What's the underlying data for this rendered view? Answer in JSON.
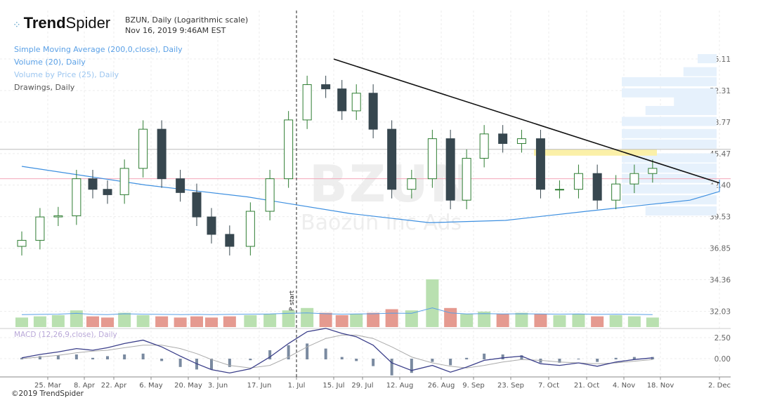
{
  "header": {
    "brand_bold": "Trend",
    "brand_light": "Spider",
    "title": "BZUN, Daily (Logarithmic scale)",
    "timestamp": "Nov 16, 2019 9:46AM EST"
  },
  "legend": [
    {
      "label": "Simple Moving Average (200,0,close), Daily",
      "color": "#5aa0e6"
    },
    {
      "label": "Volume (20), Daily",
      "color": "#5aa0e6"
    },
    {
      "label": "Volume by Price (25), Daily",
      "color": "#9cc6f0"
    },
    {
      "label": "Drawings, Daily",
      "color": "#555555"
    }
  ],
  "watermark": {
    "symbol": "BZUN",
    "name": "Baozun Inc Ads"
  },
  "macd_label": "MACD (12,26,9,close), Daily",
  "copyright": "©2019 TrendSpider",
  "vbp_marker": "VbP start",
  "colors": {
    "up": "#2e7d32",
    "down": "#37474f",
    "sma": "#3d8fe0",
    "trend": "#111111",
    "vol_up": "#b9e0b0",
    "vol_down": "#e59a90"
  },
  "chart_data": {
    "type": "candlestick",
    "scale": "log",
    "title": "BZUN, Daily (Logarithmic scale)",
    "price_ticks": [
      "56.11",
      "52.31",
      "48.77",
      "45.47",
      "42.40",
      "39.53",
      "36.85",
      "34.36",
      "32.03"
    ],
    "macd_ticks": [
      "2.50",
      "0.00"
    ],
    "x_ticks": [
      "25. Mar",
      "8. Apr",
      "22. Apr",
      "6. May",
      "20. May",
      "3. Jun",
      "17. Jun",
      "1. Jul",
      "15. Jul",
      "29. Jul",
      "12. Aug",
      "26. Aug",
      "9. Sep",
      "23. Sep",
      "7. Oct",
      "21. Oct",
      "4. Nov",
      "18. Nov",
      "2. Dec"
    ],
    "weekly_close": [
      37.5,
      39.5,
      39.6,
      43,
      42,
      41.5,
      44,
      48,
      43,
      41.7,
      39.5,
      38,
      37,
      40,
      43,
      49,
      53,
      52.5,
      50,
      52,
      48,
      42,
      43,
      47,
      41,
      45,
      47.5,
      46.5,
      47,
      42,
      42,
      43.5,
      41,
      42.5,
      43.5,
      44
    ],
    "weekly_volume": [
      8,
      9,
      10,
      14,
      9,
      8,
      12,
      10,
      9,
      8,
      9,
      8,
      9,
      10,
      11,
      14,
      16,
      12,
      10,
      11,
      12,
      15,
      14,
      40,
      16,
      11,
      13,
      11,
      12,
      11,
      10,
      11,
      9,
      10,
      9,
      8
    ],
    "sma": [
      [
        -10,
        44.2
      ],
      [
        40,
        42.4
      ],
      [
        80,
        41.3
      ],
      [
        120,
        39.8
      ],
      [
        150,
        39.0
      ],
      [
        180,
        39.2
      ],
      [
        210,
        40.0
      ],
      [
        245,
        41.0
      ],
      [
        270,
        41.8
      ],
      [
        330,
        42.9
      ]
    ],
    "macd": [
      0.1,
      0.5,
      0.8,
      1.2,
      1.0,
      1.3,
      1.8,
      2.2,
      1.4,
      0.3,
      -0.6,
      -1.3,
      -1.7,
      -1.2,
      0.2,
      1.8,
      3.2,
      3.6,
      3.0,
      2.6,
      1.6,
      -0.5,
      -1.4,
      -0.8,
      -1.6,
      -1.0,
      -0.2,
      0.1,
      0.3,
      -0.6,
      -0.8,
      -0.5,
      -0.9,
      -0.4,
      -0.1,
      0.1
    ],
    "signal": [
      0.0,
      0.2,
      0.4,
      0.7,
      0.9,
      1.0,
      1.3,
      1.6,
      1.6,
      1.2,
      0.6,
      -0.1,
      -0.8,
      -1.1,
      -0.8,
      0.2,
      1.4,
      2.4,
      2.8,
      2.8,
      2.4,
      1.4,
      0.2,
      -0.5,
      -0.9,
      -1.1,
      -0.8,
      -0.4,
      -0.1,
      -0.2,
      -0.4,
      -0.5,
      -0.6,
      -0.5,
      -0.3,
      -0.1
    ],
    "horizontal_lines": [
      {
        "price": 45.9,
        "color": "#bbbbbb"
      },
      {
        "price": 43.0,
        "color": "#f2a6b8"
      }
    ],
    "trendline": [
      [
        112,
        56.1
      ],
      [
        260,
        42.6
      ]
    ],
    "vbp_start_day": 98,
    "volume_by_price": [
      [
        56.1,
        20
      ],
      [
        54.5,
        35
      ],
      [
        53.3,
        100
      ],
      [
        52.0,
        100
      ],
      [
        51.0,
        45
      ],
      [
        50.0,
        75
      ],
      [
        48.8,
        100
      ],
      [
        47.5,
        100
      ],
      [
        46.4,
        100
      ],
      [
        45.0,
        100
      ],
      [
        44.0,
        100
      ],
      [
        43.0,
        100
      ],
      [
        42.0,
        100
      ],
      [
        41.0,
        100
      ],
      [
        40.0,
        75
      ]
    ]
  }
}
